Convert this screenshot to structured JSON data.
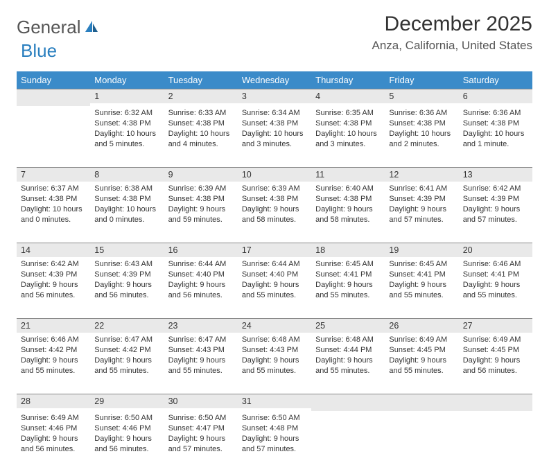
{
  "logo": {
    "text1": "General",
    "text2": "Blue"
  },
  "title": "December 2025",
  "location": "Anza, California, United States",
  "header_bg": "#3b8bc9",
  "daynum_bg": "#e9e9e9",
  "weekdays": [
    "Sunday",
    "Monday",
    "Tuesday",
    "Wednesday",
    "Thursday",
    "Friday",
    "Saturday"
  ],
  "weeks": [
    [
      null,
      {
        "n": "1",
        "sr": "6:32 AM",
        "ss": "4:38 PM",
        "dl": "10 hours and 5 minutes."
      },
      {
        "n": "2",
        "sr": "6:33 AM",
        "ss": "4:38 PM",
        "dl": "10 hours and 4 minutes."
      },
      {
        "n": "3",
        "sr": "6:34 AM",
        "ss": "4:38 PM",
        "dl": "10 hours and 3 minutes."
      },
      {
        "n": "4",
        "sr": "6:35 AM",
        "ss": "4:38 PM",
        "dl": "10 hours and 3 minutes."
      },
      {
        "n": "5",
        "sr": "6:36 AM",
        "ss": "4:38 PM",
        "dl": "10 hours and 2 minutes."
      },
      {
        "n": "6",
        "sr": "6:36 AM",
        "ss": "4:38 PM",
        "dl": "10 hours and 1 minute."
      }
    ],
    [
      {
        "n": "7",
        "sr": "6:37 AM",
        "ss": "4:38 PM",
        "dl": "10 hours and 0 minutes."
      },
      {
        "n": "8",
        "sr": "6:38 AM",
        "ss": "4:38 PM",
        "dl": "10 hours and 0 minutes."
      },
      {
        "n": "9",
        "sr": "6:39 AM",
        "ss": "4:38 PM",
        "dl": "9 hours and 59 minutes."
      },
      {
        "n": "10",
        "sr": "6:39 AM",
        "ss": "4:38 PM",
        "dl": "9 hours and 58 minutes."
      },
      {
        "n": "11",
        "sr": "6:40 AM",
        "ss": "4:38 PM",
        "dl": "9 hours and 58 minutes."
      },
      {
        "n": "12",
        "sr": "6:41 AM",
        "ss": "4:39 PM",
        "dl": "9 hours and 57 minutes."
      },
      {
        "n": "13",
        "sr": "6:42 AM",
        "ss": "4:39 PM",
        "dl": "9 hours and 57 minutes."
      }
    ],
    [
      {
        "n": "14",
        "sr": "6:42 AM",
        "ss": "4:39 PM",
        "dl": "9 hours and 56 minutes."
      },
      {
        "n": "15",
        "sr": "6:43 AM",
        "ss": "4:39 PM",
        "dl": "9 hours and 56 minutes."
      },
      {
        "n": "16",
        "sr": "6:44 AM",
        "ss": "4:40 PM",
        "dl": "9 hours and 56 minutes."
      },
      {
        "n": "17",
        "sr": "6:44 AM",
        "ss": "4:40 PM",
        "dl": "9 hours and 55 minutes."
      },
      {
        "n": "18",
        "sr": "6:45 AM",
        "ss": "4:41 PM",
        "dl": "9 hours and 55 minutes."
      },
      {
        "n": "19",
        "sr": "6:45 AM",
        "ss": "4:41 PM",
        "dl": "9 hours and 55 minutes."
      },
      {
        "n": "20",
        "sr": "6:46 AM",
        "ss": "4:41 PM",
        "dl": "9 hours and 55 minutes."
      }
    ],
    [
      {
        "n": "21",
        "sr": "6:46 AM",
        "ss": "4:42 PM",
        "dl": "9 hours and 55 minutes."
      },
      {
        "n": "22",
        "sr": "6:47 AM",
        "ss": "4:42 PM",
        "dl": "9 hours and 55 minutes."
      },
      {
        "n": "23",
        "sr": "6:47 AM",
        "ss": "4:43 PM",
        "dl": "9 hours and 55 minutes."
      },
      {
        "n": "24",
        "sr": "6:48 AM",
        "ss": "4:43 PM",
        "dl": "9 hours and 55 minutes."
      },
      {
        "n": "25",
        "sr": "6:48 AM",
        "ss": "4:44 PM",
        "dl": "9 hours and 55 minutes."
      },
      {
        "n": "26",
        "sr": "6:49 AM",
        "ss": "4:45 PM",
        "dl": "9 hours and 55 minutes."
      },
      {
        "n": "27",
        "sr": "6:49 AM",
        "ss": "4:45 PM",
        "dl": "9 hours and 56 minutes."
      }
    ],
    [
      {
        "n": "28",
        "sr": "6:49 AM",
        "ss": "4:46 PM",
        "dl": "9 hours and 56 minutes."
      },
      {
        "n": "29",
        "sr": "6:50 AM",
        "ss": "4:46 PM",
        "dl": "9 hours and 56 minutes."
      },
      {
        "n": "30",
        "sr": "6:50 AM",
        "ss": "4:47 PM",
        "dl": "9 hours and 57 minutes."
      },
      {
        "n": "31",
        "sr": "6:50 AM",
        "ss": "4:48 PM",
        "dl": "9 hours and 57 minutes."
      },
      null,
      null,
      null
    ]
  ],
  "labels": {
    "sunrise": "Sunrise:",
    "sunset": "Sunset:",
    "daylight": "Daylight:"
  }
}
